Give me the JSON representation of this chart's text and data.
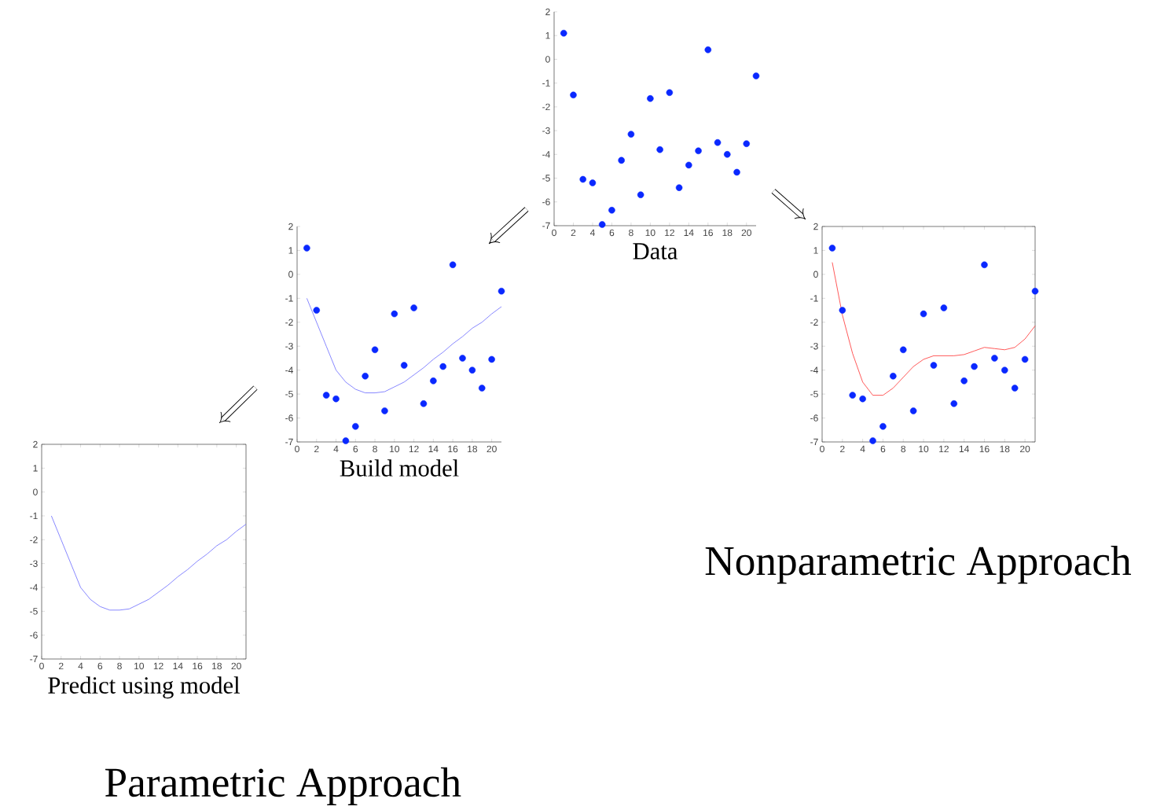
{
  "chart_data": [
    {
      "type": "scatter",
      "xlabel": "Data",
      "x": [
        1,
        2,
        3,
        4,
        5,
        6,
        7,
        8,
        9,
        10,
        11,
        12,
        13,
        14,
        15,
        16,
        17,
        18,
        19,
        20,
        21
      ],
      "xlim": [
        0,
        21
      ],
      "ylim": [
        -7,
        2
      ],
      "xticks": [
        0,
        2,
        4,
        6,
        8,
        10,
        12,
        14,
        16,
        18,
        20
      ],
      "yticks": [
        -7,
        -6,
        -5,
        -4,
        -3,
        -2,
        -1,
        0,
        1,
        2
      ],
      "series": [
        {
          "color": "#0a28ff",
          "marker": "circle",
          "values": [
            1.1,
            -1.5,
            -5.05,
            -5.2,
            -6.95,
            -6.35,
            -4.25,
            -3.15,
            -5.7,
            -1.65,
            -3.8,
            -1.4,
            -5.4,
            -4.45,
            -3.85,
            0.4,
            -3.5,
            -4.0,
            -4.75,
            -3.55,
            -0.7
          ]
        }
      ]
    },
    {
      "type": "scatter",
      "xlabel": "Build model",
      "x": [
        1,
        2,
        3,
        4,
        5,
        6,
        7,
        8,
        9,
        10,
        11,
        12,
        13,
        14,
        15,
        16,
        17,
        18,
        19,
        20,
        21
      ],
      "xlim": [
        0,
        21
      ],
      "ylim": [
        -7,
        2
      ],
      "xticks": [
        0,
        2,
        4,
        6,
        8,
        10,
        12,
        14,
        16,
        18,
        20
      ],
      "yticks": [
        -7,
        -6,
        -5,
        -4,
        -3,
        -2,
        -1,
        0,
        1,
        2
      ],
      "series": [
        {
          "color": "#0a28ff",
          "marker": "circle",
          "values": [
            1.1,
            -1.5,
            -5.05,
            -5.2,
            -6.95,
            -6.35,
            -4.25,
            -3.15,
            -5.7,
            -1.65,
            -3.8,
            -1.4,
            -5.4,
            -4.45,
            -3.85,
            0.4,
            -3.5,
            -4.0,
            -4.75,
            -3.55,
            -0.7
          ]
        },
        {
          "type": "line",
          "color": "#6a6aff",
          "values": [
            -1.0,
            -2.0,
            -3.0,
            -4.0,
            -4.5,
            -4.8,
            -4.95,
            -4.95,
            -4.9,
            -4.7,
            -4.5,
            -4.2,
            -3.9,
            -3.55,
            -3.25,
            -2.9,
            -2.6,
            -2.25,
            -2.0,
            -1.65,
            -1.35
          ]
        }
      ]
    },
    {
      "type": "scatter",
      "annotations": [
        "Nonparametric Approach"
      ],
      "x": [
        1,
        2,
        3,
        4,
        5,
        6,
        7,
        8,
        9,
        10,
        11,
        12,
        13,
        14,
        15,
        16,
        17,
        18,
        19,
        20,
        21
      ],
      "xlim": [
        0,
        21
      ],
      "ylim": [
        -7,
        2
      ],
      "xticks": [
        0,
        2,
        4,
        6,
        8,
        10,
        12,
        14,
        16,
        18,
        20
      ],
      "yticks": [
        -7,
        -6,
        -5,
        -4,
        -3,
        -2,
        -1,
        0,
        1,
        2
      ],
      "series": [
        {
          "color": "#0a28ff",
          "marker": "circle",
          "values": [
            1.1,
            -1.5,
            -5.05,
            -5.2,
            -6.95,
            -6.35,
            -4.25,
            -3.15,
            -5.7,
            -1.65,
            -3.8,
            -1.4,
            -5.4,
            -4.45,
            -3.85,
            0.4,
            -3.5,
            -4.0,
            -4.75,
            -3.55,
            -0.7
          ]
        },
        {
          "type": "line",
          "color": "#ff3030",
          "values": [
            0.5,
            -1.7,
            -3.3,
            -4.5,
            -5.05,
            -5.05,
            -4.75,
            -4.3,
            -3.85,
            -3.55,
            -3.4,
            -3.4,
            -3.4,
            -3.35,
            -3.2,
            -3.05,
            -3.1,
            -3.15,
            -3.05,
            -2.7,
            -2.15
          ]
        }
      ]
    },
    {
      "type": "line",
      "xlabel": "Predict using model",
      "annotations": [
        "Parametric Approach"
      ],
      "x": [
        1,
        2,
        3,
        4,
        5,
        6,
        7,
        8,
        9,
        10,
        11,
        12,
        13,
        14,
        15,
        16,
        17,
        18,
        19,
        20,
        21
      ],
      "xlim": [
        0,
        21
      ],
      "ylim": [
        -7,
        2
      ],
      "xticks": [
        0,
        2,
        4,
        6,
        8,
        10,
        12,
        14,
        16,
        18,
        20
      ],
      "yticks": [
        -7,
        -6,
        -5,
        -4,
        -3,
        -2,
        -1,
        0,
        1,
        2
      ],
      "series": [
        {
          "color": "#6a6aff",
          "values": [
            -1.0,
            -2.0,
            -3.0,
            -4.0,
            -4.5,
            -4.8,
            -4.95,
            -4.95,
            -4.9,
            -4.7,
            -4.5,
            -4.2,
            -3.9,
            -3.55,
            -3.25,
            -2.9,
            -2.6,
            -2.25,
            -2.0,
            -1.65,
            -1.35
          ]
        }
      ]
    }
  ]
}
